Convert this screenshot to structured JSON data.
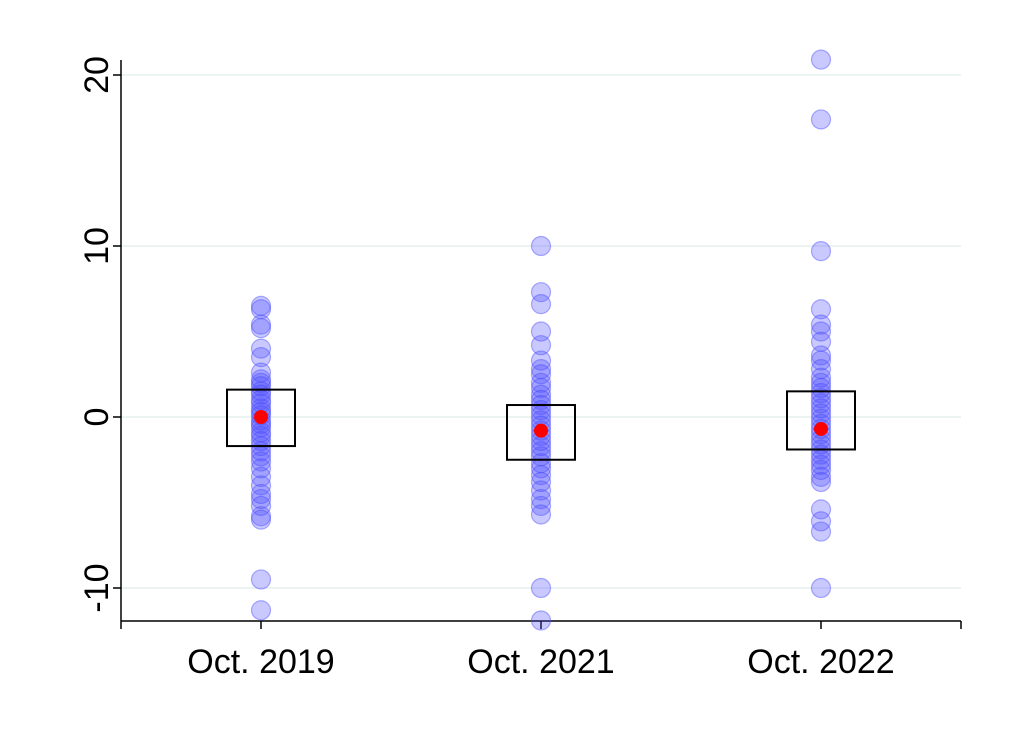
{
  "chart_data": {
    "type": "scatter",
    "title": "",
    "xlabel": "",
    "ylabel": "",
    "categories": [
      "Oct. 2019",
      "Oct. 2021",
      "Oct. 2022"
    ],
    "ylim": [
      -12,
      21
    ],
    "yticks": [
      -10,
      0,
      10,
      20
    ],
    "ytick_labels": [
      "-10",
      "0",
      "10",
      "20"
    ],
    "grid": true,
    "colors": {
      "points": "#4b4bff",
      "mean": "#ff0000",
      "box": "#000000",
      "grid": "#e6efef"
    },
    "series": [
      {
        "category": "Oct. 2019",
        "mean": 0.0,
        "box_low": -1.7,
        "box_high": 1.6,
        "points": [
          6.5,
          6.3,
          5.4,
          5.2,
          4.0,
          3.5,
          2.6,
          2.2,
          2.0,
          1.8,
          1.5,
          1.3,
          1.0,
          0.8,
          0.5,
          0.3,
          0.1,
          -0.2,
          -0.4,
          -0.6,
          -0.9,
          -1.1,
          -1.4,
          -1.7,
          -2.0,
          -2.3,
          -2.6,
          -3.0,
          -3.5,
          -4.0,
          -4.5,
          -4.8,
          -5.2,
          -5.8,
          -6.0,
          -9.5,
          -11.3
        ]
      },
      {
        "category": "Oct. 2021",
        "mean": -0.8,
        "box_low": -2.5,
        "box_high": 0.7,
        "points": [
          10.0,
          7.3,
          6.6,
          5.0,
          4.2,
          3.3,
          2.8,
          2.5,
          2.0,
          1.7,
          1.3,
          1.0,
          0.7,
          0.4,
          0.1,
          -0.2,
          -0.5,
          -0.8,
          -1.1,
          -1.4,
          -1.7,
          -2.0,
          -2.3,
          -2.7,
          -3.0,
          -3.4,
          -3.8,
          -4.3,
          -4.8,
          -5.2,
          -5.7,
          -10.0,
          -11.9
        ]
      },
      {
        "category": "Oct. 2022",
        "mean": -0.7,
        "box_low": -1.9,
        "box_high": 1.5,
        "points": [
          20.9,
          17.4,
          9.7,
          6.3,
          5.4,
          5.0,
          4.4,
          3.6,
          3.3,
          2.8,
          2.3,
          2.0,
          1.7,
          1.4,
          1.1,
          0.8,
          0.5,
          0.2,
          -0.1,
          -0.4,
          -0.7,
          -1.0,
          -1.3,
          -1.6,
          -1.9,
          -2.2,
          -2.5,
          -2.8,
          -3.1,
          -3.5,
          -3.8,
          -5.4,
          -6.1,
          -6.7,
          -10.0
        ]
      }
    ]
  }
}
